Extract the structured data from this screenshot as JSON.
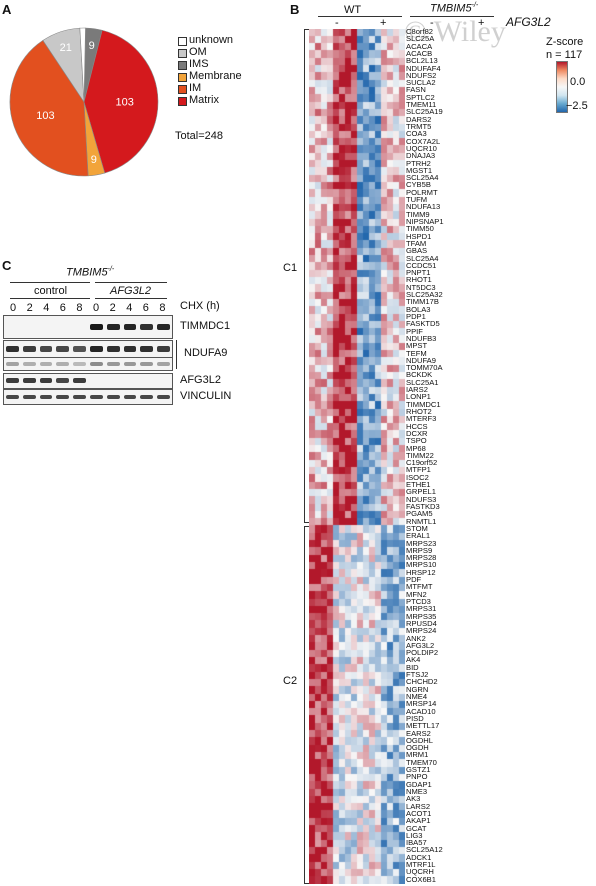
{
  "panel_a": {
    "letter": "A",
    "pie_labels": [
      "21",
      "9",
      "103",
      "9",
      "103"
    ],
    "legend": [
      {
        "label": "unknown",
        "color": "#ffffff"
      },
      {
        "label": "OM",
        "color": "#c8c8c8"
      },
      {
        "label": "IMS",
        "color": "#7a7a7a"
      },
      {
        "label": "Membrane",
        "color": "#f2a43a"
      },
      {
        "label": "IM",
        "color": "#e2501f"
      },
      {
        "label": "Matrix",
        "color": "#d4191d"
      }
    ],
    "total": "Total=248"
  },
  "chart_data": {
    "type": "pie",
    "categories": [
      "unknown",
      "OM",
      "IMS",
      "Membrane",
      "IM",
      "Matrix"
    ],
    "values": [
      3,
      21,
      9,
      9,
      103,
      103
    ],
    "colors": [
      "#ffffff",
      "#c8c8c8",
      "#7a7a7a",
      "#f2a43a",
      "#e2501f",
      "#d4191d"
    ],
    "title": "",
    "total_label": "Total=248"
  },
  "panel_b": {
    "letter": "B",
    "header_wt": "WT",
    "header_ko": "TMBIM5",
    "header_ko_sup": "-/-",
    "afg_label": "AFG3L2",
    "col_minus_1": "-",
    "col_plus_1": "+",
    "col_minus_2": "-",
    "col_plus_2": "+",
    "watermark": "© Wiley",
    "zscore_title": "Z-score",
    "n_label": "n = 117",
    "zscore_top": "0.0",
    "zscore_bottom": "−2.5",
    "cluster_c1": "C1",
    "cluster_c2": "C2",
    "genes": [
      "C8orf82",
      "SLC25A",
      "ACACA",
      "ACACB",
      "BCL2L13",
      "NDUFAF4",
      "NDUFS2",
      "SUCLA2",
      "FASN",
      "SPTLC2",
      "TMEM11",
      "SLC25A19",
      "DARS2",
      "TRMT5",
      "COA3",
      "COX7A2L",
      "UQCR10",
      "DNAJA3",
      "PTRH2",
      "MGST1",
      "SCL25A4",
      "CYB5B",
      "POLRMT",
      "TUFM",
      "NDUFA13",
      "TIMM9",
      "NIPSNAP1",
      "TIMM50",
      "HSPD1",
      "TFAM",
      "GBAS",
      "SLC25A4",
      "CCDC51",
      "PNPT1",
      "RHOT1",
      "NT5DC3",
      "SLC25A32",
      "TIMM17B",
      "BOLA3",
      "PDP1",
      "FASKTD5",
      "PPIF",
      "NDUFB3",
      "MPST",
      "TEFM",
      "NDUFA9",
      "TOMM70A",
      "BCKDK",
      "SLC25A1",
      "IARS2",
      "LONP1",
      "TIMMDC1",
      "RHOT2",
      "MTERF3",
      "HCCS",
      "DCXR",
      "TSPO",
      "MP68",
      "TIMM22",
      "C19orf52",
      "MTFP1",
      "ISOC2",
      "ETHE1",
      "GRPEL1",
      "NDUFS3",
      "FASTKD3",
      "PGAM5",
      "RNMTL1",
      "STOM",
      "ERAL1",
      "MRPS23",
      "MRPS9",
      "MRPS28",
      "MRPS10",
      "HRSP12",
      "PDF",
      "MTFMT",
      "MFN2",
      "PTCD3",
      "MRPS31",
      "MRPS35",
      "RPUSD4",
      "MRPS24",
      "ANK2",
      "AFG3L2",
      "POLDIP2",
      "AK4",
      "BID",
      "FTSJ2",
      "CHCHD2",
      "NGRN",
      "NME4",
      "MRSP14",
      "ACAD10",
      "PISD",
      "METTL17",
      "EARS2",
      "OGDHL",
      "OGDH",
      "MRM1",
      "TMEM70",
      "GSTZ1",
      "PNPO",
      "GDAP1",
      "NME3",
      "AK3",
      "LARS2",
      "ACOT1",
      "AKAP1",
      "GCAT",
      "LIG3",
      "IBA57",
      "SCL25A12",
      "ADCK1",
      "MTRF1L",
      "UQCRH",
      "COX6B1"
    ]
  },
  "panel_c": {
    "letter": "C",
    "title": "TMBIM5",
    "title_sup": "-/-",
    "group_control": "control",
    "group_afg": "AFG3L2",
    "chx_label": "CHX (h)",
    "timepoints": [
      "0",
      "2",
      "4",
      "6",
      "8",
      "0",
      "2",
      "4",
      "6",
      "8"
    ],
    "blots": [
      "TIMMDC1",
      "NDUFA9",
      "AFG3L2",
      "VINCULIN"
    ]
  }
}
